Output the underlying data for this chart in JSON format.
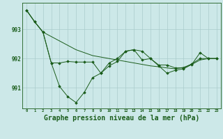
{
  "background_color": "#cce8e8",
  "grid_color": "#aacccc",
  "line_color": "#1a5c1a",
  "marker_color": "#1a5c1a",
  "xlabel": "Graphe pression niveau de la mer (hPa)",
  "xlabel_fontsize": 7,
  "ytick_labels": [
    "991",
    "992",
    "993"
  ],
  "ytick_values": [
    991,
    992,
    993
  ],
  "xlim": [
    -0.5,
    23.5
  ],
  "ylim": [
    990.3,
    993.9
  ],
  "series1": [
    993.65,
    993.25,
    992.9,
    992.75,
    992.6,
    992.45,
    992.3,
    992.2,
    992.1,
    992.05,
    992.0,
    991.95,
    991.9,
    991.85,
    991.8,
    991.75,
    991.72,
    991.68,
    991.65,
    991.7,
    991.8,
    991.95,
    992.0,
    992.0
  ],
  "series2": [
    993.65,
    993.25,
    992.9,
    991.85,
    991.05,
    990.7,
    990.5,
    990.85,
    991.35,
    991.5,
    991.75,
    991.9,
    992.25,
    992.3,
    991.95,
    992.0,
    991.75,
    991.5,
    991.6,
    991.65,
    991.8,
    992.2,
    992.0,
    992.0
  ],
  "series3": [
    993.65,
    993.25,
    992.9,
    991.85,
    991.85,
    991.9,
    991.88,
    991.88,
    991.88,
    991.5,
    991.85,
    992.0,
    992.25,
    992.3,
    992.25,
    992.0,
    991.78,
    991.78,
    991.68,
    991.68,
    991.82,
    992.0,
    992.0,
    992.0
  ]
}
